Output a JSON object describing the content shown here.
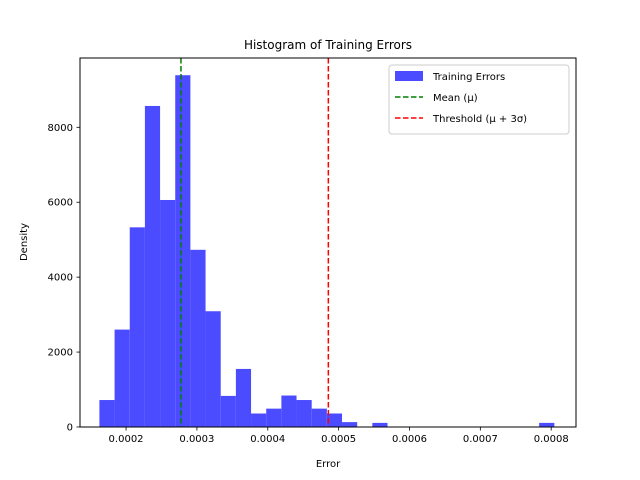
{
  "chart_data": {
    "type": "bar",
    "title": "Histogram of Training Errors",
    "xlabel": "Error",
    "ylabel": "Density",
    "xlim": [
      0.000135,
      0.000835
    ],
    "ylim": [
      0,
      9850
    ],
    "xticks": [
      0.0002,
      0.0003,
      0.0004,
      0.0005,
      0.0006,
      0.0007,
      0.0008
    ],
    "xtick_labels": [
      "0.0002",
      "0.0003",
      "0.0004",
      "0.0005",
      "0.0006",
      "0.0007",
      "0.0008"
    ],
    "yticks": [
      0,
      2000,
      4000,
      6000,
      8000
    ],
    "ytick_labels": [
      "0",
      "2000",
      "4000",
      "6000",
      "8000"
    ],
    "grid": false,
    "legend_position": "top-right",
    "bin_edges": [
      0.0001624,
      0.0001838,
      0.0002052,
      0.0002266,
      0.000248,
      0.0002694,
      0.0002908,
      0.0003122,
      0.0003336,
      0.000355,
      0.0003764,
      0.0003978,
      0.0004192,
      0.0004406,
      0.000462,
      0.0004834,
      0.0005048,
      0.0005262,
      0.0005476,
      0.000569,
      0.0005904,
      0.0006118,
      0.0006332,
      0.0006546,
      0.000676,
      0.0006974,
      0.0007188,
      0.0007402,
      0.0007616,
      0.000783,
      0.0008044
    ],
    "values": [
      720,
      2600,
      5330,
      8570,
      6060,
      9390,
      4730,
      3090,
      830,
      1550,
      360,
      490,
      840,
      720,
      490,
      360,
      130,
      0,
      110,
      0,
      0,
      0,
      0,
      0,
      0,
      0,
      0,
      0,
      0,
      110
    ],
    "series": [
      {
        "name": "Training Errors",
        "kind": "histogram",
        "color": "#4b4bff"
      },
      {
        "name": "Mean (μ)",
        "kind": "vline",
        "x": 0.0002775,
        "color": "#008000",
        "style": "dashed"
      },
      {
        "name": "Threshold (μ + 3σ)",
        "kind": "vline",
        "x": 0.0004855,
        "color": "#ff0000",
        "style": "dashed"
      }
    ]
  }
}
